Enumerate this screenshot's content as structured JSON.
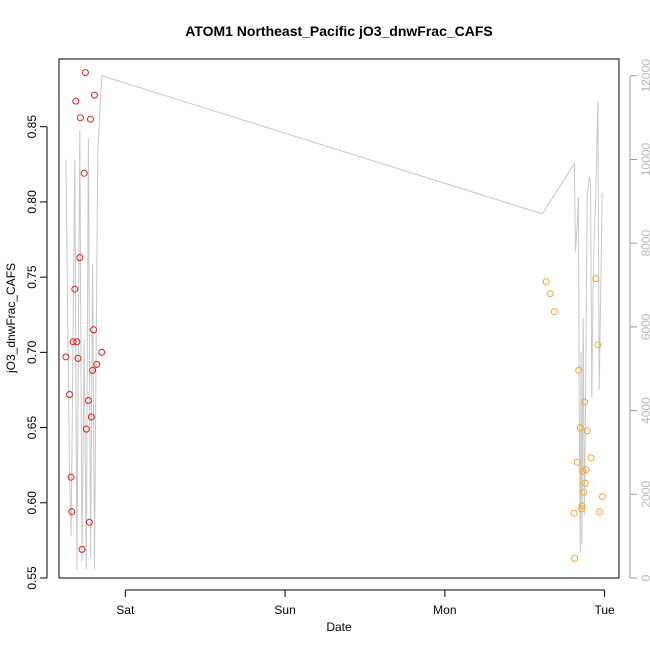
{
  "chart_data": {
    "type": "scatter",
    "title": "ATOM1 Northeast_Pacific jO3_dnwFrac_CAFS",
    "xlabel": "Date",
    "ylabel": "jO3_dnwFrac_CAFS",
    "x_unit": "days",
    "xlim": [
      -0.415,
      3.09
    ],
    "ylim": [
      0.55,
      0.895
    ],
    "y2lim": [
      0,
      12400
    ],
    "x_ticks": [
      {
        "value": 0,
        "label": "Sat"
      },
      {
        "value": 1,
        "label": "Sun"
      },
      {
        "value": 2,
        "label": "Mon"
      },
      {
        "value": 3,
        "label": "Tue"
      }
    ],
    "y_ticks": [
      {
        "value": 0.55,
        "label": "0.55"
      },
      {
        "value": 0.6,
        "label": "0.60"
      },
      {
        "value": 0.65,
        "label": "0.65"
      },
      {
        "value": 0.7,
        "label": "0.70"
      },
      {
        "value": 0.75,
        "label": "0.75"
      },
      {
        "value": 0.8,
        "label": "0.80"
      },
      {
        "value": 0.85,
        "label": "0.85"
      }
    ],
    "y2_ticks": [
      {
        "value": 0,
        "label": "0"
      },
      {
        "value": 2000,
        "label": "2000"
      },
      {
        "value": 4000,
        "label": "4000"
      },
      {
        "value": 6000,
        "label": "6000"
      },
      {
        "value": 8000,
        "label": "8000"
      },
      {
        "value": 10000,
        "label": "10000"
      },
      {
        "value": 12000,
        "label": "12000"
      }
    ],
    "grid": false,
    "series": [
      {
        "color": "#e31a1c",
        "marker": "open-circle",
        "points": [
          [
            -0.372,
            0.697
          ],
          [
            -0.349,
            0.672
          ],
          [
            -0.339,
            0.617
          ],
          [
            -0.335,
            0.594
          ],
          [
            -0.327,
            0.707
          ],
          [
            -0.316,
            0.742
          ],
          [
            -0.31,
            0.867
          ],
          [
            -0.303,
            0.707
          ],
          [
            -0.296,
            0.696
          ],
          [
            -0.285,
            0.763
          ],
          [
            -0.281,
            0.856
          ],
          [
            -0.271,
            0.569
          ],
          [
            -0.257,
            0.819
          ],
          [
            -0.25,
            0.886
          ],
          [
            -0.244,
            0.649
          ],
          [
            -0.231,
            0.668
          ],
          [
            -0.225,
            0.587
          ],
          [
            -0.218,
            0.855
          ],
          [
            -0.212,
            0.657
          ],
          [
            -0.205,
            0.688
          ],
          [
            -0.199,
            0.715
          ],
          [
            -0.193,
            0.871
          ],
          [
            -0.179,
            0.692
          ],
          [
            -0.147,
            0.7
          ]
        ]
      },
      {
        "color": "#f5a623",
        "marker": "open-circle",
        "points": [
          [
            2.634,
            0.747
          ],
          [
            2.66,
            0.739
          ],
          [
            2.685,
            0.727
          ],
          [
            2.809,
            0.593
          ],
          [
            2.812,
            0.563
          ],
          [
            2.829,
            0.627
          ],
          [
            2.838,
            0.688
          ],
          [
            2.848,
            0.65
          ],
          [
            2.856,
            0.596
          ],
          [
            2.859,
            0.598
          ],
          [
            2.866,
            0.621
          ],
          [
            2.868,
            0.607
          ],
          [
            2.875,
            0.667
          ],
          [
            2.88,
            0.613
          ],
          [
            2.885,
            0.622
          ],
          [
            2.891,
            0.648
          ],
          [
            2.915,
            0.63
          ],
          [
            2.945,
            0.749
          ],
          [
            2.958,
            0.705
          ],
          [
            2.969,
            0.594
          ],
          [
            2.986,
            0.604
          ]
        ]
      },
      {
        "color": "#c8c8c8",
        "type": "line",
        "axis": "right",
        "points": [
          [
            -0.372,
            10000
          ],
          [
            -0.349,
            2500
          ],
          [
            -0.339,
            1000
          ],
          [
            -0.316,
            10000
          ],
          [
            -0.303,
            200
          ],
          [
            -0.285,
            10700
          ],
          [
            -0.271,
            400
          ],
          [
            -0.257,
            5700
          ],
          [
            -0.244,
            200
          ],
          [
            -0.231,
            10500
          ],
          [
            -0.218,
            500
          ],
          [
            -0.205,
            7500
          ],
          [
            -0.193,
            200
          ],
          [
            -0.185,
            4200
          ],
          [
            -0.172,
            10200
          ],
          [
            -0.147,
            12000
          ],
          [
            2.61,
            8700
          ],
          [
            2.81,
            9900
          ],
          [
            2.818,
            7800
          ],
          [
            2.829,
            8500
          ],
          [
            2.836,
            9100
          ],
          [
            2.841,
            4200
          ],
          [
            2.848,
            600
          ],
          [
            2.853,
            5400
          ],
          [
            2.858,
            800
          ],
          [
            2.866,
            6200
          ],
          [
            2.873,
            1500
          ],
          [
            2.88,
            3800
          ],
          [
            2.891,
            9100
          ],
          [
            2.904,
            9600
          ],
          [
            2.912,
            9400
          ],
          [
            2.92,
            4300
          ],
          [
            2.928,
            6900
          ],
          [
            2.936,
            8400
          ],
          [
            2.943,
            8900
          ],
          [
            2.958,
            11400
          ],
          [
            2.966,
            4500
          ],
          [
            2.985,
            9200
          ]
        ]
      }
    ]
  }
}
